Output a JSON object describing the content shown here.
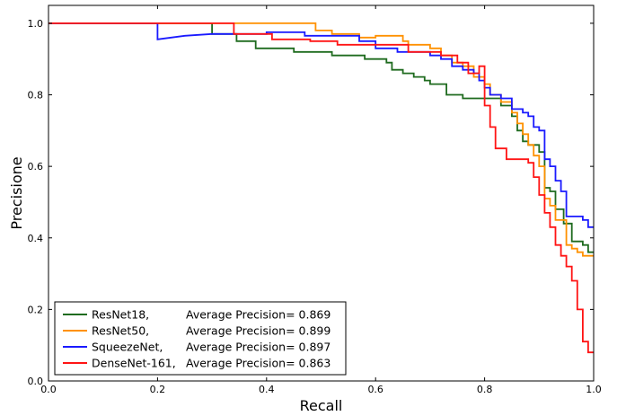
{
  "chart_data": {
    "type": "line",
    "title": "",
    "xlabel": "Recall",
    "ylabel": "Precisione",
    "xlim": [
      0,
      1
    ],
    "ylim": [
      0,
      1.05
    ],
    "x_ticks": [
      "0.0",
      "0.2",
      "0.4",
      "0.6",
      "0.8",
      "1.0"
    ],
    "y_ticks": [
      "0.0",
      "0.2",
      "0.4",
      "0.6",
      "0.8",
      "1.0"
    ],
    "grid": false,
    "legend_position": "lower-left",
    "series": [
      {
        "name": "ResNet18,",
        "metric": "Average Precision= 0.869",
        "color": "#1f6b1f",
        "points": [
          [
            0,
            1.0
          ],
          [
            0.3,
            1.0
          ],
          [
            0.3,
            0.97
          ],
          [
            0.345,
            0.97
          ],
          [
            0.345,
            0.95
          ],
          [
            0.38,
            0.95
          ],
          [
            0.38,
            0.93
          ],
          [
            0.45,
            0.93
          ],
          [
            0.45,
            0.92
          ],
          [
            0.52,
            0.92
          ],
          [
            0.52,
            0.91
          ],
          [
            0.58,
            0.91
          ],
          [
            0.58,
            0.9
          ],
          [
            0.62,
            0.9
          ],
          [
            0.62,
            0.89
          ],
          [
            0.63,
            0.89
          ],
          [
            0.63,
            0.87
          ],
          [
            0.65,
            0.87
          ],
          [
            0.65,
            0.86
          ],
          [
            0.67,
            0.86
          ],
          [
            0.67,
            0.85
          ],
          [
            0.69,
            0.85
          ],
          [
            0.69,
            0.84
          ],
          [
            0.7,
            0.84
          ],
          [
            0.7,
            0.83
          ],
          [
            0.73,
            0.83
          ],
          [
            0.73,
            0.8
          ],
          [
            0.76,
            0.8
          ],
          [
            0.76,
            0.79
          ],
          [
            0.83,
            0.79
          ],
          [
            0.83,
            0.77
          ],
          [
            0.85,
            0.77
          ],
          [
            0.85,
            0.74
          ],
          [
            0.86,
            0.74
          ],
          [
            0.86,
            0.7
          ],
          [
            0.87,
            0.7
          ],
          [
            0.87,
            0.67
          ],
          [
            0.88,
            0.67
          ],
          [
            0.88,
            0.66
          ],
          [
            0.9,
            0.66
          ],
          [
            0.9,
            0.64
          ],
          [
            0.91,
            0.64
          ],
          [
            0.91,
            0.54
          ],
          [
            0.92,
            0.54
          ],
          [
            0.92,
            0.53
          ],
          [
            0.93,
            0.53
          ],
          [
            0.93,
            0.48
          ],
          [
            0.945,
            0.48
          ],
          [
            0.945,
            0.44
          ],
          [
            0.96,
            0.44
          ],
          [
            0.96,
            0.39
          ],
          [
            0.98,
            0.39
          ],
          [
            0.98,
            0.38
          ],
          [
            0.99,
            0.38
          ],
          [
            0.99,
            0.36
          ],
          [
            1.0,
            0.36
          ]
        ]
      },
      {
        "name": "ResNet50,",
        "metric": "Average Precision= 0.899",
        "color": "#ff9100",
        "points": [
          [
            0,
            1.0
          ],
          [
            0.49,
            1.0
          ],
          [
            0.49,
            0.98
          ],
          [
            0.52,
            0.98
          ],
          [
            0.52,
            0.97
          ],
          [
            0.57,
            0.97
          ],
          [
            0.57,
            0.96
          ],
          [
            0.6,
            0.96
          ],
          [
            0.6,
            0.965
          ],
          [
            0.65,
            0.965
          ],
          [
            0.65,
            0.95
          ],
          [
            0.66,
            0.95
          ],
          [
            0.66,
            0.94
          ],
          [
            0.7,
            0.94
          ],
          [
            0.7,
            0.93
          ],
          [
            0.72,
            0.93
          ],
          [
            0.72,
            0.91
          ],
          [
            0.74,
            0.91
          ],
          [
            0.74,
            0.89
          ],
          [
            0.76,
            0.89
          ],
          [
            0.76,
            0.88
          ],
          [
            0.78,
            0.88
          ],
          [
            0.78,
            0.85
          ],
          [
            0.8,
            0.85
          ],
          [
            0.8,
            0.83
          ],
          [
            0.81,
            0.83
          ],
          [
            0.81,
            0.8
          ],
          [
            0.83,
            0.8
          ],
          [
            0.83,
            0.78
          ],
          [
            0.85,
            0.78
          ],
          [
            0.85,
            0.75
          ],
          [
            0.86,
            0.75
          ],
          [
            0.86,
            0.72
          ],
          [
            0.87,
            0.72
          ],
          [
            0.87,
            0.69
          ],
          [
            0.88,
            0.69
          ],
          [
            0.88,
            0.66
          ],
          [
            0.89,
            0.66
          ],
          [
            0.89,
            0.63
          ],
          [
            0.9,
            0.63
          ],
          [
            0.9,
            0.6
          ],
          [
            0.91,
            0.6
          ],
          [
            0.91,
            0.51
          ],
          [
            0.92,
            0.51
          ],
          [
            0.92,
            0.49
          ],
          [
            0.93,
            0.49
          ],
          [
            0.93,
            0.45
          ],
          [
            0.95,
            0.45
          ],
          [
            0.95,
            0.38
          ],
          [
            0.96,
            0.38
          ],
          [
            0.96,
            0.37
          ],
          [
            0.97,
            0.37
          ],
          [
            0.97,
            0.36
          ],
          [
            0.98,
            0.36
          ],
          [
            0.98,
            0.35
          ],
          [
            1.0,
            0.35
          ]
        ]
      },
      {
        "name": "SqueezeNet,",
        "metric": "Average Precision= 0.897",
        "color": "#1a1aff",
        "points": [
          [
            0,
            1.0
          ],
          [
            0.2,
            1.0
          ],
          [
            0.2,
            0.955
          ],
          [
            0.25,
            0.965
          ],
          [
            0.3,
            0.97
          ],
          [
            0.4,
            0.97
          ],
          [
            0.4,
            0.975
          ],
          [
            0.47,
            0.975
          ],
          [
            0.47,
            0.965
          ],
          [
            0.53,
            0.965
          ],
          [
            0.53,
            0.965
          ],
          [
            0.57,
            0.965
          ],
          [
            0.57,
            0.95
          ],
          [
            0.6,
            0.95
          ],
          [
            0.6,
            0.93
          ],
          [
            0.64,
            0.93
          ],
          [
            0.64,
            0.92
          ],
          [
            0.7,
            0.92
          ],
          [
            0.7,
            0.91
          ],
          [
            0.72,
            0.91
          ],
          [
            0.72,
            0.9
          ],
          [
            0.74,
            0.9
          ],
          [
            0.74,
            0.88
          ],
          [
            0.76,
            0.88
          ],
          [
            0.76,
            0.87
          ],
          [
            0.78,
            0.87
          ],
          [
            0.78,
            0.86
          ],
          [
            0.79,
            0.86
          ],
          [
            0.79,
            0.84
          ],
          [
            0.8,
            0.84
          ],
          [
            0.8,
            0.82
          ],
          [
            0.81,
            0.82
          ],
          [
            0.81,
            0.8
          ],
          [
            0.83,
            0.8
          ],
          [
            0.83,
            0.79
          ],
          [
            0.85,
            0.79
          ],
          [
            0.85,
            0.76
          ],
          [
            0.87,
            0.76
          ],
          [
            0.87,
            0.75
          ],
          [
            0.88,
            0.75
          ],
          [
            0.88,
            0.74
          ],
          [
            0.89,
            0.74
          ],
          [
            0.89,
            0.71
          ],
          [
            0.9,
            0.71
          ],
          [
            0.9,
            0.7
          ],
          [
            0.91,
            0.7
          ],
          [
            0.91,
            0.62
          ],
          [
            0.92,
            0.62
          ],
          [
            0.92,
            0.6
          ],
          [
            0.93,
            0.6
          ],
          [
            0.93,
            0.56
          ],
          [
            0.94,
            0.56
          ],
          [
            0.94,
            0.53
          ],
          [
            0.95,
            0.53
          ],
          [
            0.95,
            0.46
          ],
          [
            0.97,
            0.46
          ],
          [
            0.97,
            0.46
          ],
          [
            0.98,
            0.46
          ],
          [
            0.98,
            0.45
          ],
          [
            0.99,
            0.45
          ],
          [
            0.99,
            0.43
          ],
          [
            1.0,
            0.43
          ]
        ]
      },
      {
        "name": "DenseNet-161,",
        "metric": "Average Precision= 0.863",
        "color": "#ff1414",
        "points": [
          [
            0,
            1.0
          ],
          [
            0.34,
            1.0
          ],
          [
            0.34,
            0.97
          ],
          [
            0.41,
            0.97
          ],
          [
            0.41,
            0.955
          ],
          [
            0.48,
            0.955
          ],
          [
            0.48,
            0.95
          ],
          [
            0.53,
            0.95
          ],
          [
            0.53,
            0.94
          ],
          [
            0.6,
            0.94
          ],
          [
            0.6,
            0.94
          ],
          [
            0.66,
            0.94
          ],
          [
            0.66,
            0.92
          ],
          [
            0.72,
            0.92
          ],
          [
            0.72,
            0.91
          ],
          [
            0.75,
            0.91
          ],
          [
            0.75,
            0.89
          ],
          [
            0.77,
            0.89
          ],
          [
            0.77,
            0.86
          ],
          [
            0.79,
            0.86
          ],
          [
            0.79,
            0.88
          ],
          [
            0.8,
            0.88
          ],
          [
            0.8,
            0.77
          ],
          [
            0.81,
            0.77
          ],
          [
            0.81,
            0.71
          ],
          [
            0.82,
            0.71
          ],
          [
            0.82,
            0.65
          ],
          [
            0.84,
            0.65
          ],
          [
            0.84,
            0.62
          ],
          [
            0.88,
            0.62
          ],
          [
            0.88,
            0.61
          ],
          [
            0.89,
            0.61
          ],
          [
            0.89,
            0.57
          ],
          [
            0.9,
            0.57
          ],
          [
            0.9,
            0.52
          ],
          [
            0.91,
            0.52
          ],
          [
            0.91,
            0.47
          ],
          [
            0.92,
            0.47
          ],
          [
            0.92,
            0.43
          ],
          [
            0.93,
            0.43
          ],
          [
            0.93,
            0.38
          ],
          [
            0.94,
            0.38
          ],
          [
            0.94,
            0.35
          ],
          [
            0.95,
            0.35
          ],
          [
            0.95,
            0.32
          ],
          [
            0.96,
            0.32
          ],
          [
            0.96,
            0.28
          ],
          [
            0.97,
            0.28
          ],
          [
            0.97,
            0.2
          ],
          [
            0.98,
            0.2
          ],
          [
            0.98,
            0.11
          ],
          [
            0.99,
            0.11
          ],
          [
            0.99,
            0.08
          ],
          [
            1.0,
            0.08
          ]
        ]
      }
    ]
  }
}
